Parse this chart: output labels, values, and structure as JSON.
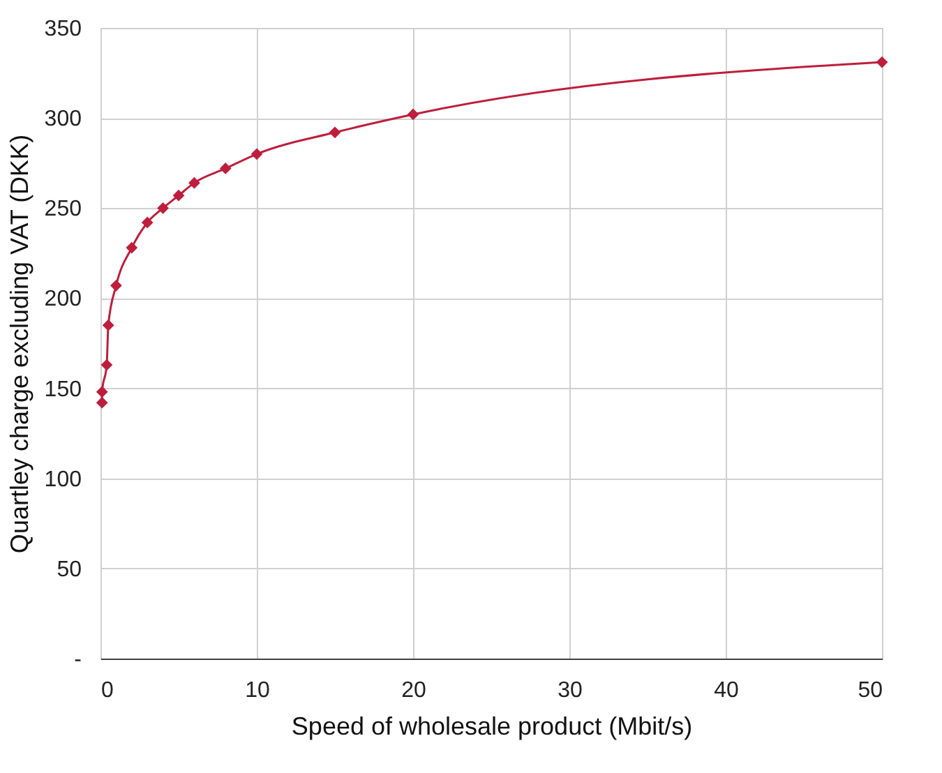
{
  "chart_data": {
    "type": "line",
    "xlabel": "Speed of wholesale product (Mbit/s)",
    "ylabel": "Quartley charge excluding VAT (DKK)",
    "x": [
      0.1,
      0.1,
      0.4,
      0.5,
      1,
      2,
      3,
      4,
      5,
      6,
      8,
      10,
      15,
      20,
      50
    ],
    "series": [
      {
        "color": "#be1e3c",
        "values": [
          142,
          148,
          163,
          185,
          207,
          228,
          242,
          250,
          257,
          264,
          272,
          280,
          292,
          302,
          331
        ]
      }
    ],
    "xlim": [
      0,
      50
    ],
    "xticks": [
      0,
      10,
      20,
      30,
      40,
      50
    ],
    "ylim": [
      0,
      350
    ],
    "yticks": [
      {
        "value": 0,
        "label": "-"
      },
      50,
      100,
      150,
      200,
      250,
      300,
      350
    ],
    "grid": true,
    "marker": "diamond",
    "line_style": "solid"
  }
}
